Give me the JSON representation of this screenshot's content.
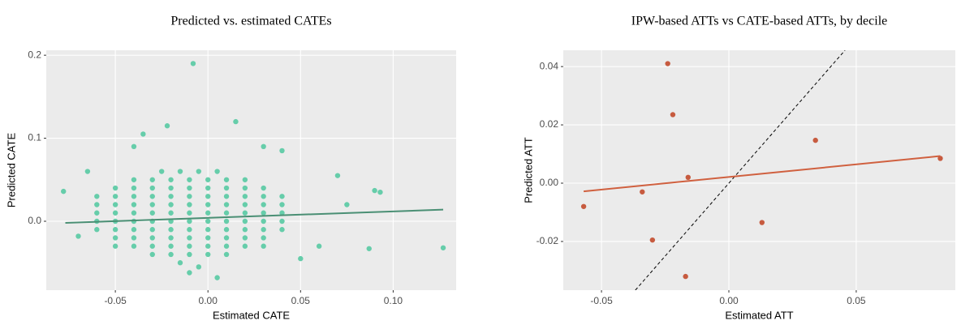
{
  "chart_data": [
    {
      "type": "scatter",
      "title": "Predicted vs. estimated CATEs",
      "x_label": "Estimated CATE",
      "y_label": "Predicted CATE",
      "color": "#66CDAA",
      "x": [
        -0.025,
        -0.015,
        -0.005,
        0.005,
        -0.04,
        -0.03,
        -0.02,
        -0.01,
        0,
        0.01,
        0.02,
        -0.05,
        -0.04,
        -0.03,
        -0.02,
        -0.01,
        0,
        0.01,
        0.02,
        0.03,
        -0.06,
        -0.05,
        -0.04,
        -0.03,
        -0.02,
        -0.01,
        0,
        0.01,
        0.02,
        0.03,
        0.04,
        -0.06,
        -0.05,
        -0.04,
        -0.03,
        -0.02,
        -0.01,
        0,
        0.01,
        0.02,
        0.03,
        0.04,
        -0.06,
        -0.05,
        -0.04,
        -0.03,
        -0.02,
        -0.01,
        0,
        0.01,
        0.02,
        0.03,
        0.04,
        -0.06,
        -0.05,
        -0.04,
        -0.03,
        -0.02,
        -0.01,
        0,
        0.01,
        0.02,
        0.03,
        0.04,
        -0.06,
        -0.05,
        -0.04,
        -0.03,
        -0.02,
        -0.01,
        0,
        0.01,
        0.02,
        0.03,
        0.04,
        -0.05,
        -0.04,
        -0.03,
        -0.02,
        -0.01,
        0,
        0.01,
        0.02,
        0.03,
        -0.05,
        -0.04,
        -0.03,
        -0.02,
        -0.01,
        0,
        0.01,
        0.02,
        0.03,
        -0.03,
        -0.02,
        -0.01,
        0,
        0.01,
        -0.015,
        -0.005,
        -0.008,
        -0.035,
        -0.022,
        0.015,
        -0.04,
        0.03,
        0.04,
        0.07,
        0.09,
        0.093,
        0.087,
        0.127,
        -0.078,
        -0.07,
        0.005,
        -0.01,
        0.05,
        0.06,
        0.075,
        -0.065
      ],
      "values": [
        0.06,
        0.06,
        0.06,
        0.06,
        0.05,
        0.05,
        0.05,
        0.05,
        0.05,
        0.05,
        0.05,
        0.04,
        0.04,
        0.04,
        0.04,
        0.04,
        0.04,
        0.04,
        0.04,
        0.04,
        0.03,
        0.03,
        0.03,
        0.03,
        0.03,
        0.03,
        0.03,
        0.03,
        0.03,
        0.03,
        0.03,
        0.02,
        0.02,
        0.02,
        0.02,
        0.02,
        0.02,
        0.02,
        0.02,
        0.02,
        0.02,
        0.02,
        0.01,
        0.01,
        0.01,
        0.01,
        0.01,
        0.01,
        0.01,
        0.01,
        0.01,
        0.01,
        0.01,
        0,
        0,
        0,
        0,
        0,
        0,
        0,
        0,
        0,
        0,
        0,
        -0.01,
        -0.01,
        -0.01,
        -0.01,
        -0.01,
        -0.01,
        -0.01,
        -0.01,
        -0.01,
        -0.01,
        -0.01,
        -0.02,
        -0.02,
        -0.02,
        -0.02,
        -0.02,
        -0.02,
        -0.02,
        -0.02,
        -0.02,
        -0.03,
        -0.03,
        -0.03,
        -0.03,
        -0.03,
        -0.03,
        -0.03,
        -0.03,
        -0.03,
        -0.04,
        -0.04,
        -0.04,
        -0.04,
        -0.04,
        -0.05,
        -0.055,
        0.19,
        0.105,
        0.115,
        0.12,
        0.09,
        0.09,
        0.085,
        0.055,
        0.037,
        0.035,
        -0.033,
        -0.032,
        0.036,
        -0.018,
        -0.068,
        -0.062,
        -0.045,
        -0.03,
        0.02,
        0.06
      ],
      "fit": {
        "color": "#4A8F74",
        "x": [
          -0.077,
          0.127
        ],
        "values": [
          -0.002,
          0.014
        ]
      },
      "xlim": [
        -0.0873,
        0.134
      ],
      "xticks": [
        -0.05,
        {
          "value": 0,
          "label": "0.00"
        },
        0.05,
        {
          "value": 0.1,
          "label": "0.10"
        }
      ],
      "ylim": [
        -0.083,
        0.206
      ],
      "yticks": [
        {
          "value": 0,
          "label": "0.0"
        },
        0.1,
        0.2
      ],
      "grid": true
    },
    {
      "type": "scatter",
      "title": "IPW-based ATTs vs CATE-based ATTs, by decile",
      "x_label": "Estimated ATT",
      "y_label": "Predicted ATT",
      "color": "#C75B3F",
      "x": [
        -0.057,
        -0.024,
        -0.022,
        -0.034,
        -0.03,
        -0.017,
        -0.016,
        0.013,
        0.034,
        0.083
      ],
      "values": [
        -0.008,
        0.041,
        0.0235,
        -0.003,
        -0.0195,
        -0.032,
        0.002,
        -0.0135,
        0.0147,
        0.0085
      ],
      "fit": {
        "color": "#D0603F",
        "x": [
          -0.057,
          0.083
        ],
        "values": [
          -0.0028,
          0.0093
        ]
      },
      "xlim": [
        -0.065,
        0.0889
      ],
      "xticks": [
        -0.05,
        {
          "value": 0,
          "label": "0.00"
        },
        0.05
      ],
      "ylim": [
        -0.0367,
        0.0456
      ],
      "yticks": [
        -0.02,
        {
          "value": 0,
          "label": "0.00"
        },
        0.02,
        0.04
      ],
      "grid": true
    }
  ]
}
